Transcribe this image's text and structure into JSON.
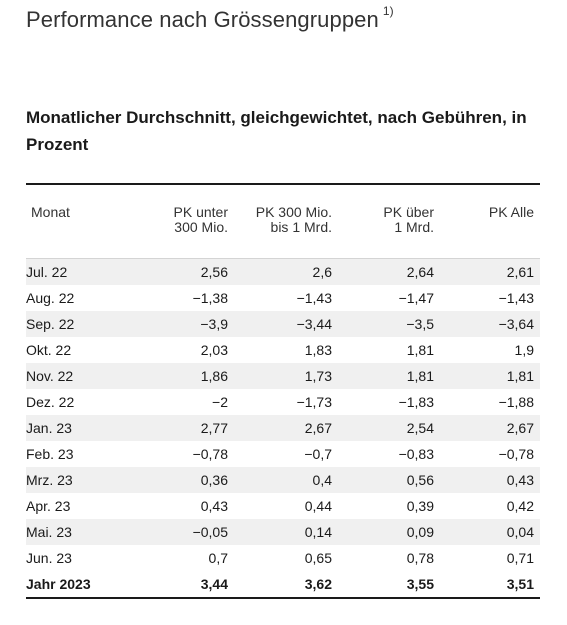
{
  "title": "Performance nach Grössengruppen",
  "title_footnote": "1)",
  "subtitle": "Monatlicher Durchschnitt, gleichgewichtet, nach Gebühren, in Prozent",
  "table": {
    "headers": {
      "month": "Monat",
      "c1_line1": "PK unter",
      "c1_line2": "300 Mio.",
      "c2_line1": "PK 300 Mio.",
      "c2_line2": "bis 1 Mrd.",
      "c3_line1": "PK über",
      "c3_line2": "1 Mrd.",
      "c4_line1": "PK Alle",
      "c4_line2": ""
    },
    "rows": [
      [
        "Jul. 22",
        "2,56",
        "2,6",
        "2,64",
        "2,61"
      ],
      [
        "Aug. 22",
        "−1,38",
        "−1,43",
        "−1,47",
        "−1,43"
      ],
      [
        "Sep. 22",
        "−3,9",
        "−3,44",
        "−3,5",
        "−3,64"
      ],
      [
        "Okt. 22",
        "2,03",
        "1,83",
        "1,81",
        "1,9"
      ],
      [
        "Nov. 22",
        "1,86",
        "1,73",
        "1,81",
        "1,81"
      ],
      [
        "Dez. 22",
        "−2",
        "−1,73",
        "−1,83",
        "−1,88"
      ],
      [
        "Jan. 23",
        "2,77",
        "2,67",
        "2,54",
        "2,67"
      ],
      [
        "Feb. 23",
        "−0,78",
        "−0,7",
        "−0,83",
        "−0,78"
      ],
      [
        "Mrz. 23",
        "0,36",
        "0,4",
        "0,56",
        "0,43"
      ],
      [
        "Apr. 23",
        "0,43",
        "0,44",
        "0,39",
        "0,42"
      ],
      [
        "Mai. 23",
        "−0,05",
        "0,14",
        "0,09",
        "0,04"
      ],
      [
        "Jun. 23",
        "0,7",
        "0,65",
        "0,78",
        "0,71"
      ]
    ],
    "total": [
      "Jahr 2023",
      "3,44",
      "3,62",
      "3,55",
      "3,51"
    ]
  }
}
